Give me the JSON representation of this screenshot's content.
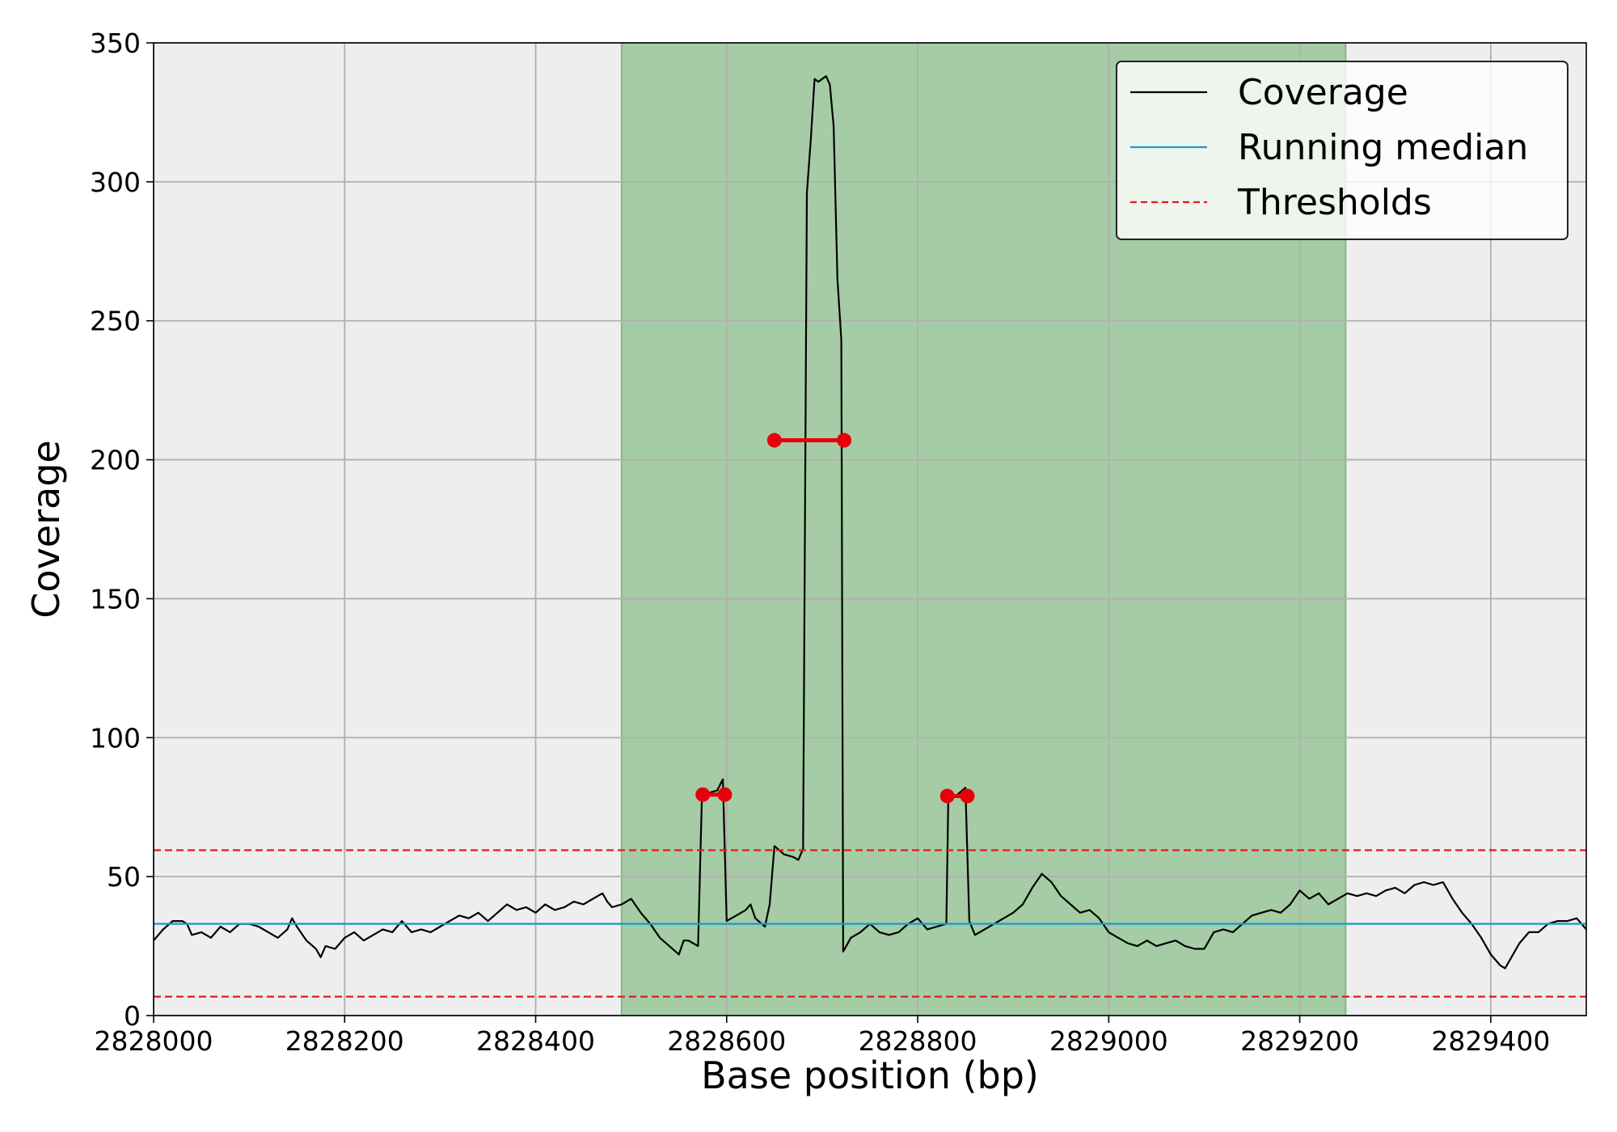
{
  "chart_data": {
    "type": "line",
    "title": "",
    "xlabel": "Base position (bp)",
    "ylabel": "Coverage",
    "xlim": [
      2828000,
      2829500
    ],
    "ylim": [
      0,
      350
    ],
    "x_ticks": [
      2828000,
      2828200,
      2828400,
      2828600,
      2828800,
      2829000,
      2829200,
      2829400
    ],
    "x_tick_labels": [
      "2828000",
      "2828200",
      "2828400",
      "2828600",
      "2828800",
      "2829000",
      "2829200",
      "2829400"
    ],
    "y_ticks": [
      0,
      50,
      100,
      150,
      200,
      250,
      300,
      350
    ],
    "y_tick_labels": [
      "0",
      "50",
      "100",
      "150",
      "200",
      "250",
      "300",
      "350"
    ],
    "grid": true,
    "background_color": "#eeeeee",
    "highlight_region": {
      "x_start": 2828490,
      "x_end": 2829248,
      "color": "#a5cca4"
    },
    "legend": {
      "placement": "top-right",
      "entries": [
        {
          "label": "Coverage",
          "color": "#000000",
          "style": "solid"
        },
        {
          "label": "Running median",
          "color": "#1f9bc8",
          "style": "solid"
        },
        {
          "label": "Thresholds",
          "color": "#e41a1c",
          "style": "dashed"
        }
      ]
    },
    "series": [
      {
        "name": "Coverage",
        "color": "#000000",
        "points": [
          [
            2828000,
            27
          ],
          [
            2828010,
            31
          ],
          [
            2828020,
            34
          ],
          [
            2828030,
            34
          ],
          [
            2828035,
            33
          ],
          [
            2828040,
            29
          ],
          [
            2828050,
            30
          ],
          [
            2828060,
            28
          ],
          [
            2828070,
            32
          ],
          [
            2828080,
            30
          ],
          [
            2828090,
            33
          ],
          [
            2828100,
            33
          ],
          [
            2828110,
            32
          ],
          [
            2828120,
            30
          ],
          [
            2828130,
            28
          ],
          [
            2828140,
            31
          ],
          [
            2828145,
            35
          ],
          [
            2828150,
            32
          ],
          [
            2828160,
            27
          ],
          [
            2828170,
            24
          ],
          [
            2828175,
            21
          ],
          [
            2828180,
            25
          ],
          [
            2828190,
            24
          ],
          [
            2828200,
            28
          ],
          [
            2828210,
            30
          ],
          [
            2828220,
            27
          ],
          [
            2828230,
            29
          ],
          [
            2828240,
            31
          ],
          [
            2828250,
            30
          ],
          [
            2828260,
            34
          ],
          [
            2828270,
            30
          ],
          [
            2828280,
            31
          ],
          [
            2828290,
            30
          ],
          [
            2828300,
            32
          ],
          [
            2828310,
            34
          ],
          [
            2828320,
            36
          ],
          [
            2828330,
            35
          ],
          [
            2828340,
            37
          ],
          [
            2828350,
            34
          ],
          [
            2828360,
            37
          ],
          [
            2828370,
            40
          ],
          [
            2828380,
            38
          ],
          [
            2828390,
            39
          ],
          [
            2828400,
            37
          ],
          [
            2828410,
            40
          ],
          [
            2828420,
            38
          ],
          [
            2828430,
            39
          ],
          [
            2828440,
            41
          ],
          [
            2828450,
            40
          ],
          [
            2828460,
            42
          ],
          [
            2828470,
            44
          ],
          [
            2828475,
            41
          ],
          [
            2828480,
            39
          ],
          [
            2828490,
            40
          ],
          [
            2828500,
            42
          ],
          [
            2828510,
            37
          ],
          [
            2828520,
            33
          ],
          [
            2828530,
            28
          ],
          [
            2828540,
            25
          ],
          [
            2828550,
            22
          ],
          [
            2828555,
            27
          ],
          [
            2828560,
            27
          ],
          [
            2828570,
            25
          ],
          [
            2828574,
            78
          ],
          [
            2828580,
            80
          ],
          [
            2828590,
            81
          ],
          [
            2828596,
            85
          ],
          [
            2828600,
            34
          ],
          [
            2828610,
            36
          ],
          [
            2828620,
            38
          ],
          [
            2828625,
            40
          ],
          [
            2828630,
            35
          ],
          [
            2828640,
            32
          ],
          [
            2828645,
            40
          ],
          [
            2828650,
            61
          ],
          [
            2828660,
            58
          ],
          [
            2828670,
            57
          ],
          [
            2828675,
            56
          ],
          [
            2828680,
            60
          ],
          [
            2828684,
            296
          ],
          [
            2828688,
            315
          ],
          [
            2828692,
            337
          ],
          [
            2828696,
            336
          ],
          [
            2828700,
            337
          ],
          [
            2828704,
            338
          ],
          [
            2828708,
            335
          ],
          [
            2828712,
            320
          ],
          [
            2828716,
            265
          ],
          [
            2828720,
            243
          ],
          [
            2828722,
            23
          ],
          [
            2828730,
            28
          ],
          [
            2828740,
            30
          ],
          [
            2828750,
            33
          ],
          [
            2828760,
            30
          ],
          [
            2828770,
            29
          ],
          [
            2828780,
            30
          ],
          [
            2828790,
            33
          ],
          [
            2828800,
            35
          ],
          [
            2828810,
            31
          ],
          [
            2828820,
            32
          ],
          [
            2828830,
            33
          ],
          [
            2828832,
            78
          ],
          [
            2828840,
            79
          ],
          [
            2828850,
            82
          ],
          [
            2828854,
            34
          ],
          [
            2828860,
            29
          ],
          [
            2828870,
            31
          ],
          [
            2828880,
            33
          ],
          [
            2828890,
            35
          ],
          [
            2828900,
            37
          ],
          [
            2828910,
            40
          ],
          [
            2828920,
            46
          ],
          [
            2828930,
            51
          ],
          [
            2828940,
            48
          ],
          [
            2828950,
            43
          ],
          [
            2828960,
            40
          ],
          [
            2828970,
            37
          ],
          [
            2828980,
            38
          ],
          [
            2828990,
            35
          ],
          [
            2829000,
            30
          ],
          [
            2829010,
            28
          ],
          [
            2829020,
            26
          ],
          [
            2829030,
            25
          ],
          [
            2829040,
            27
          ],
          [
            2829050,
            25
          ],
          [
            2829060,
            26
          ],
          [
            2829070,
            27
          ],
          [
            2829080,
            25
          ],
          [
            2829090,
            24
          ],
          [
            2829100,
            24
          ],
          [
            2829110,
            30
          ],
          [
            2829120,
            31
          ],
          [
            2829130,
            30
          ],
          [
            2829140,
            33
          ],
          [
            2829150,
            36
          ],
          [
            2829160,
            37
          ],
          [
            2829170,
            38
          ],
          [
            2829180,
            37
          ],
          [
            2829190,
            40
          ],
          [
            2829200,
            45
          ],
          [
            2829210,
            42
          ],
          [
            2829220,
            44
          ],
          [
            2829230,
            40
          ],
          [
            2829240,
            42
          ],
          [
            2829250,
            44
          ],
          [
            2829260,
            43
          ],
          [
            2829270,
            44
          ],
          [
            2829280,
            43
          ],
          [
            2829290,
            45
          ],
          [
            2829300,
            46
          ],
          [
            2829310,
            44
          ],
          [
            2829320,
            47
          ],
          [
            2829330,
            48
          ],
          [
            2829340,
            47
          ],
          [
            2829350,
            48
          ],
          [
            2829360,
            42
          ],
          [
            2829370,
            37
          ],
          [
            2829380,
            33
          ],
          [
            2829390,
            28
          ],
          [
            2829400,
            22
          ],
          [
            2829410,
            18
          ],
          [
            2829415,
            17
          ],
          [
            2829420,
            20
          ],
          [
            2829430,
            26
          ],
          [
            2829440,
            30
          ],
          [
            2829450,
            30
          ],
          [
            2829460,
            33
          ],
          [
            2829470,
            34
          ],
          [
            2829480,
            34
          ],
          [
            2829490,
            35
          ],
          [
            2829500,
            31
          ]
        ]
      },
      {
        "name": "Running median",
        "color": "#1f9bc8",
        "points": [
          [
            2828000,
            33
          ],
          [
            2829500,
            33
          ]
        ]
      },
      {
        "name": "Thresholds",
        "color": "#e41a1c",
        "style": "dashed",
        "lines": [
          [
            [
              2828000,
              59.5
            ],
            [
              2829500,
              59.5
            ]
          ],
          [
            [
              2828000,
              6.8
            ],
            [
              2829500,
              6.8
            ]
          ]
        ]
      }
    ],
    "markers": {
      "color": "#e6000b",
      "segments": [
        [
          [
            2828575,
            79.5
          ],
          [
            2828598,
            79.5
          ]
        ],
        [
          [
            2828650,
            207
          ],
          [
            2828723,
            207
          ]
        ],
        [
          [
            2828831,
            79
          ],
          [
            2828852,
            79
          ]
        ]
      ]
    }
  }
}
